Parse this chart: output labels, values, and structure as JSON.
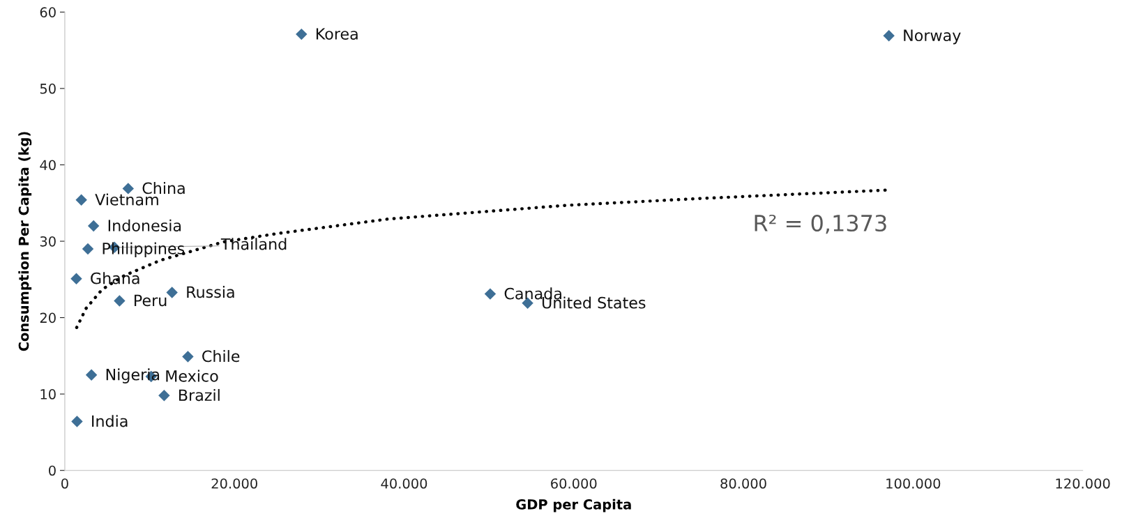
{
  "chart_data": {
    "type": "scatter",
    "xlabel": "GDP per Capita",
    "ylabel": "Consumption Per Capita (kg)",
    "xlim": [
      0,
      120000
    ],
    "ylim": [
      0,
      60
    ],
    "xticks": [
      0,
      {
        "value": 20000,
        "label": "20.000"
      },
      {
        "value": 40000,
        "label": "40.000"
      },
      {
        "value": 60000,
        "label": "60.000"
      },
      {
        "value": 80000,
        "label": "80.000"
      },
      {
        "value": 100000,
        "label": "100.000"
      },
      {
        "value": 120000,
        "label": "120.000"
      }
    ],
    "yticks": [
      0,
      10,
      20,
      30,
      40,
      50,
      60
    ],
    "grid": false,
    "legend": false,
    "series": [
      {
        "marker": "diamond",
        "color": "#3e6f96",
        "x": [
          27900,
          97150,
          7470,
          1950,
          3390,
          5850,
          2720,
          1360,
          6450,
          12640,
          50150,
          54560,
          14510,
          3140,
          10180,
          11710,
          1440
        ],
        "values": [
          57.1,
          56.9,
          36.9,
          35.4,
          32.0,
          29.2,
          29.0,
          25.1,
          22.2,
          23.3,
          23.1,
          21.9,
          14.9,
          12.5,
          12.3,
          9.8,
          6.4
        ]
      },
      {
        "type": "line",
        "marker": "none",
        "color": "#000000",
        "line_style": "dotted",
        "x": [
          1400,
          2500,
          4410,
          7000,
          11260,
          18650,
          25000,
          38040,
          59150,
          75000,
          97040
        ],
        "values": [
          18.7,
          21.2,
          23.7,
          25.5,
          27.5,
          29.9,
          31.0,
          32.9,
          34.7,
          35.6,
          36.7
        ]
      }
    ],
    "annotations": [
      {
        "text": "Korea",
        "x": 27900,
        "y": 57.1
      },
      {
        "text": "Norway",
        "x": 97150,
        "y": 56.9
      },
      {
        "text": "China",
        "x": 7470,
        "y": 36.9
      },
      {
        "text": "Vietnam",
        "x": 1950,
        "y": 35.4
      },
      {
        "text": "Indonesia",
        "x": 3390,
        "y": 32.0
      },
      {
        "text": "Thailand",
        "x": 5850,
        "y": 29.2
      },
      {
        "text": "Philippines",
        "x": 2720,
        "y": 29.0
      },
      {
        "text": "Ghana",
        "x": 1360,
        "y": 25.1
      },
      {
        "text": "Peru",
        "x": 6450,
        "y": 22.2
      },
      {
        "text": "Russia",
        "x": 12640,
        "y": 23.3
      },
      {
        "text": "Canada",
        "x": 50150,
        "y": 23.1
      },
      {
        "text": "United States",
        "x": 54560,
        "y": 21.9
      },
      {
        "text": "Chile",
        "x": 14510,
        "y": 14.9
      },
      {
        "text": "Nigeria",
        "x": 3140,
        "y": 12.5
      },
      {
        "text": "Mexico",
        "x": 10180,
        "y": 12.3
      },
      {
        "text": "Brazil",
        "x": 11710,
        "y": 9.8
      },
      {
        "text": "India",
        "x": 1440,
        "y": 6.4
      },
      {
        "text": "R² = 0,1373",
        "x": 97040,
        "y": 36.7
      }
    ]
  }
}
